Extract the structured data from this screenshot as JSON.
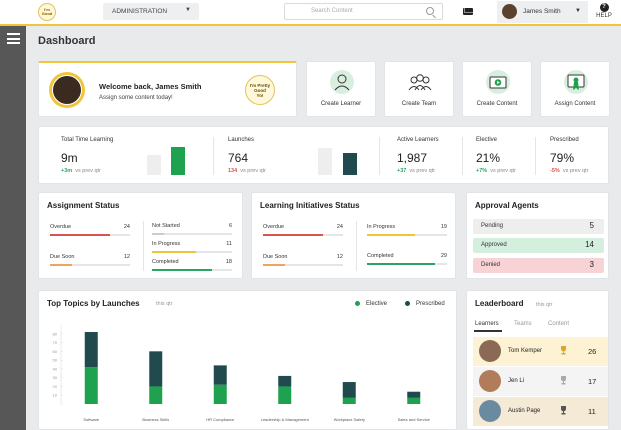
{
  "header": {
    "logo_text": "I'm Pretty Good",
    "role": "ADMINISTRATION",
    "search_placeholder": "Search Content",
    "user_name": "James Smith",
    "help_label": "HELP"
  },
  "page": {
    "title": "Dashboard"
  },
  "welcome": {
    "title": "Welcome back, James Smith",
    "subtitle": "Assign some content today!",
    "badge_text": "I'm Pretty Good Yo!"
  },
  "actions": [
    {
      "label": "Create Learner",
      "icon": "learner-icon"
    },
    {
      "label": "Create Team",
      "icon": "team-icon"
    },
    {
      "label": "Create Content",
      "icon": "content-icon"
    },
    {
      "label": "Assign Content",
      "icon": "certificate-icon"
    }
  ],
  "stats": {
    "time_learning": {
      "label": "Total Time Learning",
      "value": "9m",
      "delta": "+3m",
      "compare": "vs prev qtr"
    },
    "launches": {
      "label": "Launches",
      "value": "764",
      "delta": "134",
      "compare": "vs prev qtr"
    },
    "active_learners": {
      "label": "Active Learners",
      "value": "1,987",
      "delta": "+37",
      "compare": "vs prev qtr"
    },
    "elective": {
      "label": "Elective",
      "value": "21%",
      "delta": "+7%",
      "compare": "vs prev qtr"
    },
    "prescribed": {
      "label": "Prescribed",
      "value": "79%",
      "delta": "-5%",
      "compare": "vs prev qtr"
    }
  },
  "assignment_status": {
    "title": "Assignment Status",
    "items": [
      {
        "label": "Overdue",
        "value": "24",
        "fill": 0.75,
        "color": "#d9534f"
      },
      {
        "label": "Due Soon",
        "value": "12",
        "fill": 0.28,
        "color": "#f0a35e"
      },
      {
        "label": "Not Started",
        "value": "6",
        "fill": 0.15,
        "color": "#cccccc"
      },
      {
        "label": "In Progress",
        "value": "11",
        "fill": 0.55,
        "color": "#f0c53b"
      },
      {
        "label": "Completed",
        "value": "18",
        "fill": 0.75,
        "color": "#2aa561"
      }
    ]
  },
  "initiatives_status": {
    "title": "Learning Initiatives Status",
    "items": [
      {
        "label": "Overdue",
        "value": "24",
        "fill": 0.75,
        "color": "#d9534f"
      },
      {
        "label": "Due Soon",
        "value": "12",
        "fill": 0.28,
        "color": "#f0a35e"
      },
      {
        "label": "In Progress",
        "value": "19",
        "fill": 0.6,
        "color": "#f0c53b"
      },
      {
        "label": "Completed",
        "value": "29",
        "fill": 0.85,
        "color": "#2aa561"
      }
    ]
  },
  "approval": {
    "title": "Approval Agents",
    "items": [
      {
        "label": "Pending",
        "value": "5",
        "bg": "#eeeeee"
      },
      {
        "label": "Approved",
        "value": "14",
        "bg": "#d4efdd"
      },
      {
        "label": "Denied",
        "value": "3",
        "bg": "#f8d3d6"
      }
    ]
  },
  "topics": {
    "title": "Top Topics by Launches",
    "subtitle": "this qtr",
    "legend_elective": "Elective",
    "legend_prescribed": "Prescribed",
    "colors": {
      "elective": "#1fa24f",
      "prescribed": "#214a4f"
    }
  },
  "chart_data": {
    "type": "bar",
    "stacked": true,
    "categories": [
      "Software",
      "Business Skills",
      "HR Compliance",
      "Leadership & Management",
      "Workplace Safety",
      "Sales and Service"
    ],
    "series": [
      {
        "name": "Elective",
        "values": [
          42,
          20,
          22,
          20,
          7,
          7
        ]
      },
      {
        "name": "Prescribed",
        "values": [
          40,
          40,
          22,
          12,
          18,
          7
        ]
      }
    ],
    "yticks": [
      "80",
      "70",
      "60",
      "50",
      "40",
      "30",
      "20",
      "10",
      ""
    ],
    "ylim": [
      0,
      90
    ]
  },
  "leaderboard": {
    "title": "Leaderboard",
    "subtitle": "this qtr",
    "tabs": [
      "Learners",
      "Teams",
      "Content"
    ],
    "rows": [
      {
        "name": "Tom Kemper",
        "score": "26",
        "bg": "#fdf3d4",
        "cup": "#d6a928",
        "avatar": "#8a6a55"
      },
      {
        "name": "Jen Li",
        "score": "17",
        "bg": "#f4f4f4",
        "cup": "#aaaaaa",
        "avatar": "#b07c5a"
      },
      {
        "name": "Austin Page",
        "score": "11",
        "bg": "#f5ead6",
        "cup": "#555555",
        "avatar": "#6a8aa0"
      }
    ]
  }
}
